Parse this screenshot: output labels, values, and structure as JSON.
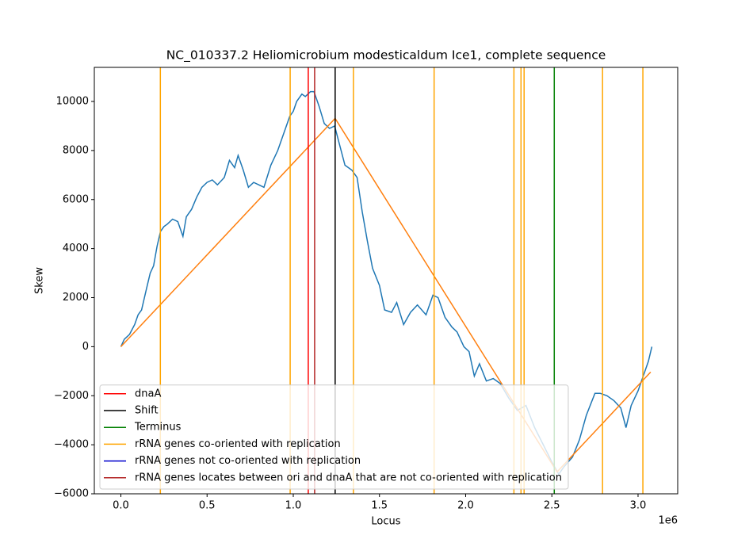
{
  "chart_data": {
    "type": "line",
    "title": "NC_010337.2 Heliomicrobium modesticaldum Ice1, complete sequence",
    "x_label": "Locus",
    "y_label": "Skew",
    "x_offset_label": "1e6",
    "xlim": [
      -154000,
      3230000
    ],
    "ylim": [
      -6000,
      11390
    ],
    "xticks": [
      {
        "value": 0,
        "label": "0.0"
      },
      {
        "value": 500000,
        "label": "0.5"
      },
      {
        "value": 1000000,
        "label": "1.0"
      },
      {
        "value": 1500000,
        "label": "1.5"
      },
      {
        "value": 2000000,
        "label": "2.0"
      },
      {
        "value": 2500000,
        "label": "2.5"
      },
      {
        "value": 3000000,
        "label": "3.0"
      }
    ],
    "yticks": [
      {
        "value": -6000,
        "label": "−6000"
      },
      {
        "value": -4000,
        "label": "−4000"
      },
      {
        "value": -2000,
        "label": "−2000"
      },
      0,
      2000,
      4000,
      6000,
      8000,
      10000
    ],
    "legend": "lower left",
    "vlines": [
      {
        "name": "dnaA",
        "color": "#ff0000",
        "x": [
          1087000
        ]
      },
      {
        "name": "Shift",
        "color": "#000000",
        "x": [
          1243000
        ]
      },
      {
        "name": "Terminus",
        "color": "#008000",
        "x": [
          2514000
        ]
      },
      {
        "name": "rRNA genes co-oriented with replication",
        "color": "#ffa500",
        "x": [
          229000,
          982000,
          1349000,
          1817000,
          2280000,
          2321000,
          2339000,
          2794000,
          3028000
        ]
      },
      {
        "name": "rRNA genes not co-oriented with replication",
        "color": "#0000cd",
        "x": []
      },
      {
        "name": "rRNA genes locates between ori and dnaA that are not co-oriented with replication",
        "color": "#b22222",
        "x": [
          1124000
        ]
      }
    ],
    "series": [
      {
        "color": "#1f77b4",
        "x": [
          0,
          20000,
          50000,
          80000,
          100000,
          120000,
          150000,
          170000,
          190000,
          210000,
          230000,
          250000,
          270000,
          300000,
          330000,
          360000,
          380000,
          410000,
          440000,
          470000,
          500000,
          530000,
          560000,
          600000,
          630000,
          660000,
          680000,
          710000,
          740000,
          770000,
          800000,
          830000,
          870000,
          910000,
          950000,
          980000,
          1000000,
          1020000,
          1050000,
          1070000,
          1100000,
          1120000,
          1150000,
          1180000,
          1210000,
          1240000,
          1270000,
          1300000,
          1340000,
          1370000,
          1400000,
          1430000,
          1460000,
          1500000,
          1530000,
          1570000,
          1600000,
          1640000,
          1680000,
          1720000,
          1770000,
          1810000,
          1840000,
          1880000,
          1920000,
          1950000,
          1990000,
          2020000,
          2050000,
          2080000,
          2120000,
          2160000,
          2200000,
          2250000,
          2300000,
          2350000,
          2400000,
          2450000,
          2500000,
          2540000,
          2570000,
          2620000,
          2660000,
          2700000,
          2750000,
          2780000,
          2820000,
          2860000,
          2900000,
          2930000,
          2960000,
          3000000,
          3030000,
          3060000,
          3080000
        ],
        "values": [
          0,
          300,
          500,
          900,
          1300,
          1500,
          2400,
          3000,
          3300,
          4100,
          4700,
          4900,
          5000,
          5200,
          5100,
          4500,
          5300,
          5600,
          6100,
          6500,
          6700,
          6800,
          6600,
          6900,
          7600,
          7300,
          7800,
          7200,
          6500,
          6700,
          6600,
          6500,
          7400,
          8000,
          8800,
          9400,
          9600,
          10000,
          10300,
          10200,
          10400,
          10400,
          9800,
          9100,
          8900,
          9000,
          8200,
          7400,
          7200,
          6900,
          5500,
          4300,
          3200,
          2500,
          1500,
          1400,
          1800,
          900,
          1400,
          1700,
          1300,
          2100,
          2000,
          1200,
          800,
          600,
          0,
          -200,
          -1200,
          -700,
          -1400,
          -1300,
          -1500,
          -2100,
          -2600,
          -2400,
          -3300,
          -4000,
          -4700,
          -5200,
          -4900,
          -4500,
          -3800,
          -2800,
          -1900,
          -1900,
          -2000,
          -2200,
          -2500,
          -3300,
          -2400,
          -1800,
          -1200,
          -600,
          0
        ]
      },
      {
        "color": "#ff7f0e",
        "x": [
          0,
          1243000,
          2530000,
          3073000
        ],
        "values": [
          0,
          9308,
          -5107,
          -1034
        ]
      }
    ]
  }
}
